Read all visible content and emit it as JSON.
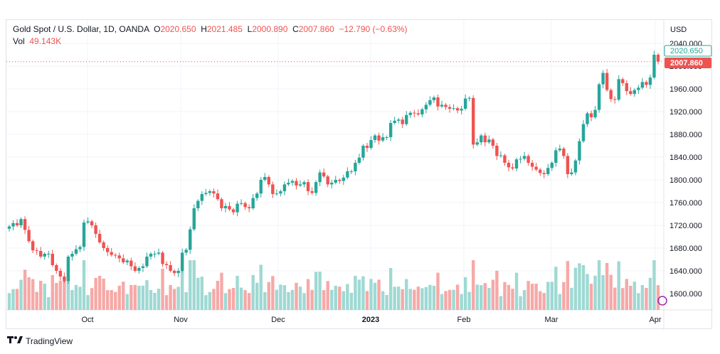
{
  "legend": {
    "symbol": "Gold Spot / U.S. Dollar, 1D, OANDA",
    "open_label": "O",
    "open": "2020.650",
    "high_label": "H",
    "high": "2021.485",
    "low_label": "L",
    "low": "2000.890",
    "close_label": "C",
    "close": "2007.860",
    "change": "−12.790 (−0.63%)",
    "volume_label": "Vol",
    "volume": "49.143K"
  },
  "footer": {
    "brand": "TradingView",
    "logo": "tradingview-logo-icon"
  },
  "colors": {
    "up": "#26a69a",
    "down": "#ef5350",
    "up_volume": "#9fd9d3",
    "down_volume": "#f6a9a7",
    "grid": "#f0f3fa",
    "last_price": "#ef5350",
    "prev_price": "#26a69a"
  },
  "chart_data": {
    "type": "candlestick",
    "currency": "USD",
    "y_ticks": [
      "1600.000",
      "1640.000",
      "1680.000",
      "1720.000",
      "1760.000",
      "1800.000",
      "1840.000",
      "1880.000",
      "1920.000",
      "1960.000",
      "2000.000",
      "2040.000"
    ],
    "ylim": [
      1570,
      2050
    ],
    "x_tick_labels": [
      {
        "label": "Oct",
        "date": "2022-10-01"
      },
      {
        "label": "Nov",
        "date": "2022-11-01"
      },
      {
        "label": "Dec",
        "date": "2022-12-01"
      },
      {
        "label": "2023",
        "date": "2023-01-01",
        "bold": true
      },
      {
        "label": "Feb",
        "date": "2023-02-01"
      },
      {
        "label": "Mar",
        "date": "2023-03-01"
      },
      {
        "label": "Apr",
        "date": "2023-04-01"
      }
    ],
    "price_labels": [
      {
        "value": "2020.650",
        "style": "open-outline"
      },
      {
        "value": "2007.860",
        "style": "last-filled"
      }
    ],
    "last_price": 2007.86,
    "open_price": 2020.65,
    "grid": true,
    "close_series": [
      1718,
      1724,
      1720,
      1731,
      1712,
      1692,
      1676,
      1675,
      1665,
      1670,
      1670,
      1650,
      1640,
      1630,
      1622,
      1665,
      1670,
      1678,
      1682,
      1725,
      1727,
      1720,
      1705,
      1690,
      1680,
      1673,
      1668,
      1667,
      1662,
      1655,
      1658,
      1648,
      1640,
      1645,
      1648,
      1665,
      1670,
      1670,
      1672,
      1652,
      1650,
      1640,
      1636,
      1640,
      1672,
      1677,
      1713,
      1750,
      1763,
      1775,
      1777,
      1780,
      1776,
      1766,
      1750,
      1754,
      1748,
      1743,
      1758,
      1759,
      1752,
      1750,
      1768,
      1776,
      1800,
      1805,
      1792,
      1775,
      1776,
      1780,
      1792,
      1795,
      1798,
      1790,
      1792,
      1796,
      1780,
      1777,
      1796,
      1813,
      1806,
      1792,
      1795,
      1800,
      1798,
      1804,
      1815,
      1815,
      1830,
      1839,
      1860,
      1856,
      1870,
      1878,
      1869,
      1875,
      1875,
      1900,
      1904,
      1906,
      1898,
      1914,
      1918,
      1917,
      1915,
      1924,
      1932,
      1940,
      1945,
      1929,
      1932,
      1928,
      1925,
      1926,
      1922,
      1925,
      1943,
      1944,
      1862,
      1866,
      1878,
      1866,
      1871,
      1860,
      1842,
      1843,
      1830,
      1822,
      1820,
      1836,
      1837,
      1842,
      1830,
      1823,
      1818,
      1812,
      1810,
      1821,
      1830,
      1852,
      1855,
      1842,
      1810,
      1813,
      1834,
      1868,
      1898,
      1917,
      1910,
      1923,
      1968,
      1988,
      1958,
      1942,
      1941,
      1977,
      1970,
      1956,
      1951,
      1958,
      1962,
      1972,
      1967,
      1980,
      2020,
      2008
    ]
  }
}
